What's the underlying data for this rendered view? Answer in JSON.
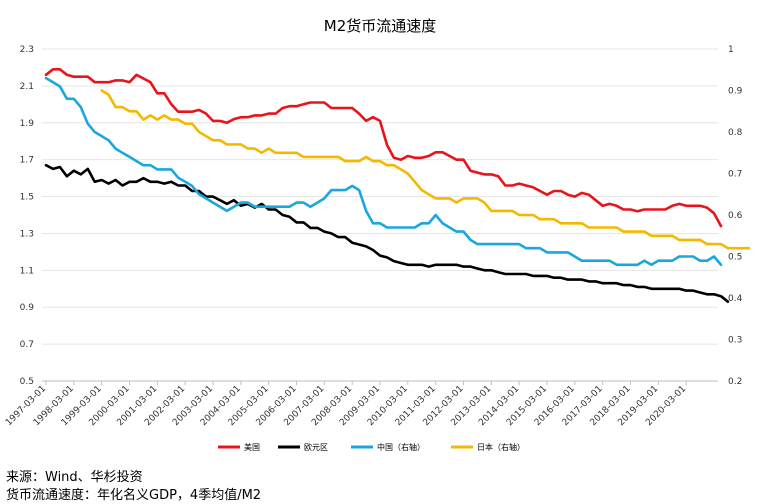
{
  "chart_data": {
    "type": "line",
    "title": "M2货币流通速度",
    "y_left": {
      "min": 0.5,
      "max": 2.3,
      "ticks": [
        "0.5",
        "0.7",
        "0.9",
        "1.1",
        "1.3",
        "1.5",
        "1.7",
        "1.9",
        "2.1",
        "2.3"
      ]
    },
    "y_right": {
      "min": 0.2,
      "max": 1.0,
      "ticks": [
        "0.2",
        "0.3",
        "0.4",
        "0.5",
        "0.6",
        "0.7",
        "0.8",
        "0.9",
        "1"
      ]
    },
    "x_ticks": [
      "1997-03-01",
      "1998-03-01",
      "1999-03-01",
      "2000-03-01",
      "2001-03-01",
      "2002-03-01",
      "2003-03-01",
      "2004-03-01",
      "2005-03-01",
      "2006-03-01",
      "2007-03-01",
      "2008-03-01",
      "2009-03-01",
      "2010-03-01",
      "2011-03-01",
      "2012-03-01",
      "2013-03-01",
      "2014-03-01",
      "2015-03-01",
      "2016-03-01",
      "2017-03-01",
      "2018-03-01",
      "2019-03-01",
      "2020-03-01"
    ],
    "x_start_year": 1997,
    "series": [
      {
        "name": "美国",
        "axis": "left",
        "color": "#e8141b",
        "start": 0,
        "values": [
          2.16,
          2.19,
          2.19,
          2.16,
          2.15,
          2.15,
          2.15,
          2.12,
          2.12,
          2.12,
          2.13,
          2.13,
          2.12,
          2.16,
          2.14,
          2.12,
          2.06,
          2.06,
          2.0,
          1.96,
          1.96,
          1.96,
          1.97,
          1.95,
          1.91,
          1.91,
          1.9,
          1.92,
          1.93,
          1.93,
          1.94,
          1.94,
          1.95,
          1.95,
          1.98,
          1.99,
          1.99,
          2.0,
          2.01,
          2.01,
          2.01,
          1.98,
          1.98,
          1.98,
          1.98,
          1.95,
          1.91,
          1.93,
          1.91,
          1.78,
          1.71,
          1.7,
          1.72,
          1.71,
          1.71,
          1.72,
          1.74,
          1.74,
          1.72,
          1.7,
          1.7,
          1.64,
          1.63,
          1.62,
          1.62,
          1.61,
          1.56,
          1.56,
          1.57,
          1.56,
          1.55,
          1.53,
          1.51,
          1.53,
          1.53,
          1.51,
          1.5,
          1.52,
          1.51,
          1.48,
          1.45,
          1.46,
          1.45,
          1.43,
          1.43,
          1.42,
          1.43,
          1.43,
          1.43,
          1.43,
          1.45,
          1.46,
          1.45,
          1.45,
          1.45,
          1.44,
          1.41,
          1.34
        ]
      },
      {
        "name": "欧元区",
        "axis": "left",
        "color": "#000000",
        "start": 0,
        "values": [
          1.67,
          1.65,
          1.66,
          1.61,
          1.64,
          1.62,
          1.65,
          1.58,
          1.59,
          1.57,
          1.59,
          1.56,
          1.58,
          1.58,
          1.6,
          1.58,
          1.58,
          1.57,
          1.58,
          1.56,
          1.56,
          1.53,
          1.53,
          1.5,
          1.5,
          1.48,
          1.46,
          1.48,
          1.45,
          1.46,
          1.44,
          1.46,
          1.43,
          1.43,
          1.4,
          1.39,
          1.36,
          1.36,
          1.33,
          1.33,
          1.31,
          1.3,
          1.28,
          1.28,
          1.25,
          1.24,
          1.23,
          1.21,
          1.18,
          1.17,
          1.15,
          1.14,
          1.13,
          1.13,
          1.13,
          1.12,
          1.13,
          1.13,
          1.13,
          1.13,
          1.12,
          1.12,
          1.11,
          1.1,
          1.1,
          1.09,
          1.08,
          1.08,
          1.08,
          1.08,
          1.07,
          1.07,
          1.07,
          1.06,
          1.06,
          1.05,
          1.05,
          1.05,
          1.04,
          1.04,
          1.03,
          1.03,
          1.03,
          1.02,
          1.02,
          1.01,
          1.01,
          1.0,
          1.0,
          1.0,
          1.0,
          1.0,
          0.99,
          0.99,
          0.98,
          0.97,
          0.97,
          0.96,
          0.93
        ]
      },
      {
        "name": "中国（右轴）",
        "axis": "right",
        "color": "#1aa7e0",
        "start": 0,
        "values": [
          0.93,
          0.92,
          0.91,
          0.88,
          0.88,
          0.86,
          0.82,
          0.8,
          0.79,
          0.78,
          0.76,
          0.75,
          0.74,
          0.73,
          0.72,
          0.72,
          0.71,
          0.71,
          0.71,
          0.69,
          0.68,
          0.67,
          0.65,
          0.64,
          0.63,
          0.62,
          0.61,
          0.62,
          0.63,
          0.63,
          0.62,
          0.62,
          0.62,
          0.62,
          0.62,
          0.62,
          0.63,
          0.63,
          0.62,
          0.63,
          0.64,
          0.66,
          0.66,
          0.66,
          0.67,
          0.66,
          0.61,
          0.58,
          0.58,
          0.57,
          0.57,
          0.57,
          0.57,
          0.57,
          0.58,
          0.58,
          0.6,
          0.58,
          0.57,
          0.56,
          0.56,
          0.54,
          0.53,
          0.53,
          0.53,
          0.53,
          0.53,
          0.53,
          0.53,
          0.52,
          0.52,
          0.52,
          0.51,
          0.51,
          0.51,
          0.51,
          0.5,
          0.49,
          0.49,
          0.49,
          0.49,
          0.49,
          0.48,
          0.48,
          0.48,
          0.48,
          0.49,
          0.48,
          0.49,
          0.49,
          0.49,
          0.5,
          0.5,
          0.5,
          0.49,
          0.49,
          0.5,
          0.48
        ]
      },
      {
        "name": "日本（右轴）",
        "axis": "right",
        "color": "#f5b800",
        "start": 8,
        "values": [
          0.9,
          0.89,
          0.86,
          0.86,
          0.85,
          0.85,
          0.83,
          0.84,
          0.83,
          0.84,
          0.83,
          0.83,
          0.82,
          0.82,
          0.8,
          0.79,
          0.78,
          0.78,
          0.77,
          0.77,
          0.77,
          0.76,
          0.76,
          0.75,
          0.76,
          0.75,
          0.75,
          0.75,
          0.75,
          0.74,
          0.74,
          0.74,
          0.74,
          0.74,
          0.74,
          0.73,
          0.73,
          0.73,
          0.74,
          0.73,
          0.73,
          0.72,
          0.72,
          0.71,
          0.7,
          0.68,
          0.66,
          0.65,
          0.64,
          0.64,
          0.64,
          0.63,
          0.64,
          0.64,
          0.64,
          0.63,
          0.61,
          0.61,
          0.61,
          0.61,
          0.6,
          0.6,
          0.6,
          0.59,
          0.59,
          0.59,
          0.58,
          0.58,
          0.58,
          0.58,
          0.57,
          0.57,
          0.57,
          0.57,
          0.57,
          0.56,
          0.56,
          0.56,
          0.56,
          0.55,
          0.55,
          0.55,
          0.55,
          0.54,
          0.54,
          0.54,
          0.54,
          0.53,
          0.53,
          0.53,
          0.52,
          0.52,
          0.52,
          0.52
        ]
      }
    ]
  },
  "footer": {
    "source": "来源：Wind、华杉投资",
    "note": "货币流通速度：年化名义GDP，4季均值/M2"
  }
}
